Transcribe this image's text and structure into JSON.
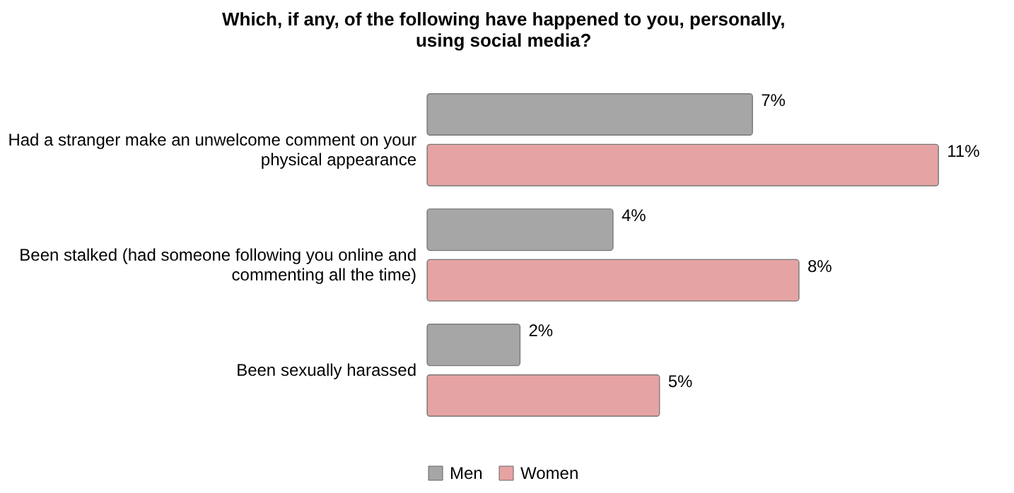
{
  "chart_data": {
    "type": "bar",
    "orientation": "horizontal",
    "title": "Which, if any, of the following have happened to you, personally,  using social media?",
    "categories": [
      "Had a stranger make an unwelcome comment on your physical appearance",
      "Been stalked (had someone following you online and commenting all the time)",
      "Been sexually harassed"
    ],
    "series": [
      {
        "name": "Men",
        "color": "#a6a6a6",
        "values": [
          7,
          4,
          2
        ],
        "value_labels": [
          "7%",
          "4%",
          "2%"
        ]
      },
      {
        "name": "Women",
        "color": "#e6a3a3",
        "values": [
          11,
          8,
          5
        ],
        "value_labels": [
          "11%",
          "8%",
          "5%"
        ]
      }
    ],
    "legend": "bottom",
    "grid": false
  }
}
